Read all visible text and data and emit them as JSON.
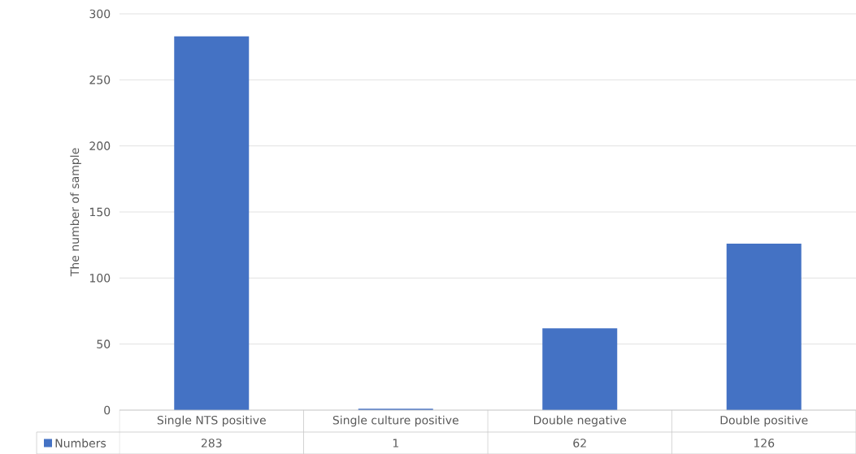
{
  "chart_data": {
    "type": "bar",
    "ylabel": "The number of sample",
    "categories": [
      "Single NTS positive",
      "Single culture positive",
      "Double negative",
      "Double positive"
    ],
    "series": [
      {
        "name": "Numbers",
        "color": "#4472c4",
        "values": [
          283,
          1,
          62,
          126
        ]
      }
    ],
    "ylim": [
      0,
      300
    ],
    "yticks": [
      0,
      50,
      100,
      150,
      200,
      250,
      300
    ],
    "grid": "y",
    "data_labels": true,
    "legend": "bottom left"
  }
}
